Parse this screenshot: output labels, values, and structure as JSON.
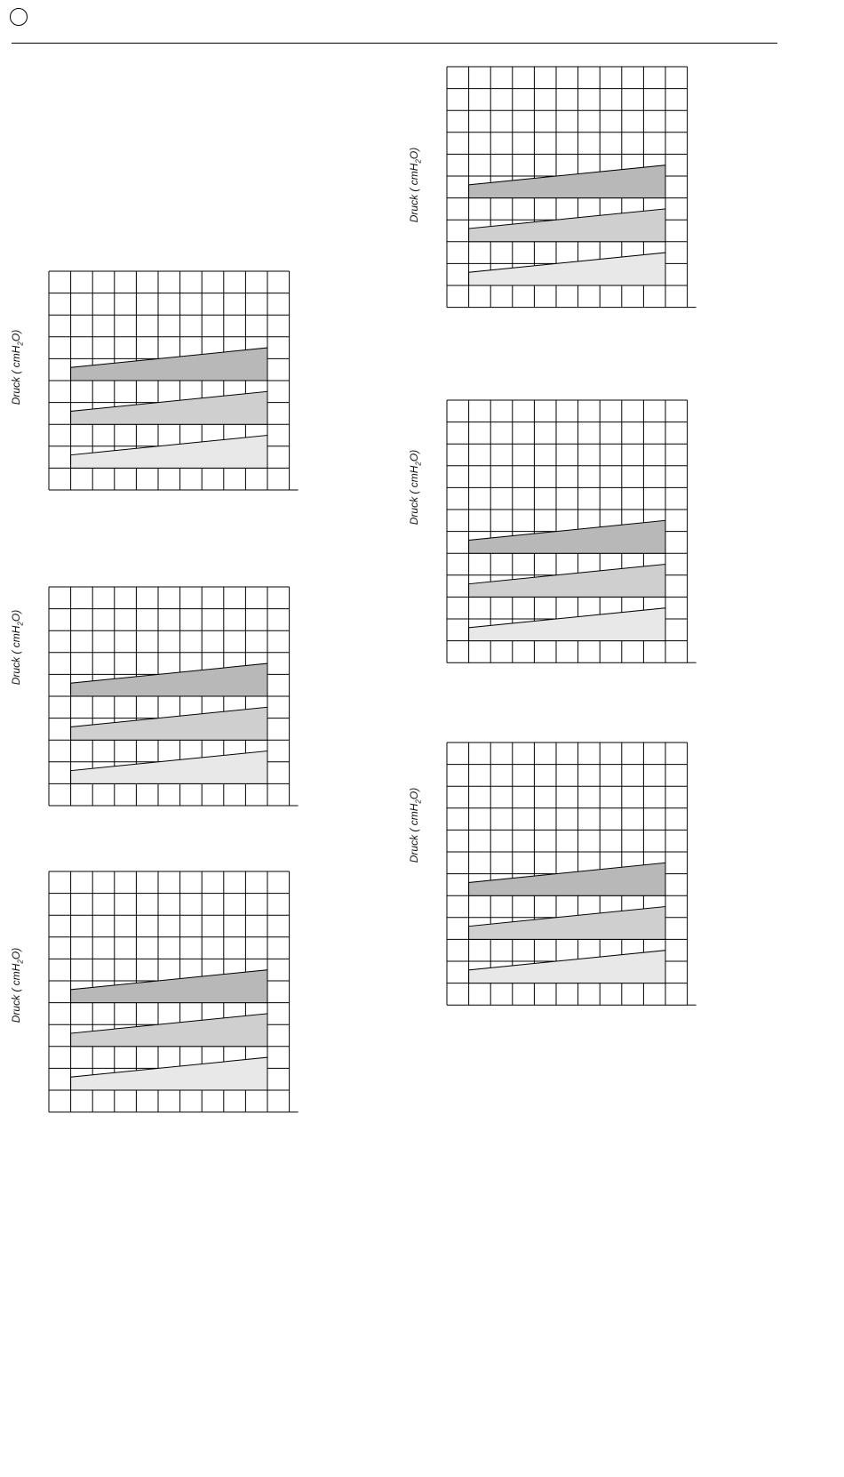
{
  "page": {
    "header_icon": "circle-icon"
  },
  "chart_data": [
    {
      "type": "area",
      "ylabel": "Druck ( cmH2O)",
      "ylabel_parts": [
        "Druck ( cmH",
        "2",
        "O)"
      ],
      "grid": true,
      "series": [
        {
          "values": [
            0.6,
            1.5
          ],
          "upper": 1.5,
          "baseline": 0,
          "color": "#e8e8e8"
        },
        {
          "values": [
            2.6,
            3.5
          ],
          "baseline": 2,
          "color": "#cfcfcf"
        },
        {
          "values": [
            4.6,
            5.5
          ],
          "baseline": 4,
          "color": "#b8b8b8"
        }
      ]
    },
    {
      "type": "area",
      "ylabel": "Druck ( cmH2O)",
      "ylabel_parts": [
        "Druck ( cmH",
        "2",
        "O)"
      ],
      "grid": true,
      "series": [
        {
          "values": [
            0.6,
            1.5
          ],
          "baseline": 0,
          "color": "#e8e8e8"
        },
        {
          "values": [
            2.6,
            3.5
          ],
          "baseline": 2,
          "color": "#cfcfcf"
        },
        {
          "values": [
            4.6,
            5.5
          ],
          "baseline": 4,
          "color": "#b8b8b8"
        }
      ]
    },
    {
      "type": "area",
      "ylabel": "Druck ( cmH2O)",
      "ylabel_parts": [
        "Druck ( cmH",
        "2",
        "O)"
      ],
      "grid": true,
      "series": [
        {
          "values": [
            0.6,
            1.5
          ],
          "baseline": 0,
          "color": "#e8e8e8"
        },
        {
          "values": [
            2.6,
            3.5
          ],
          "baseline": 2,
          "color": "#cfcfcf"
        },
        {
          "values": [
            4.6,
            5.5
          ],
          "baseline": 4,
          "color": "#b8b8b8"
        }
      ]
    },
    {
      "type": "area",
      "ylabel": "Druck ( cmH2O)",
      "ylabel_parts": [
        "Druck ( cmH",
        "2",
        "O)"
      ],
      "grid": true,
      "series": [
        {
          "values": [
            0.6,
            1.5
          ],
          "baseline": 0,
          "color": "#e8e8e8"
        },
        {
          "values": [
            2.6,
            3.5
          ],
          "baseline": 2,
          "color": "#cfcfcf"
        },
        {
          "values": [
            4.6,
            5.5
          ],
          "baseline": 4,
          "color": "#b8b8b8"
        }
      ]
    },
    {
      "type": "area",
      "ylabel": "Druck ( cmH2O)",
      "ylabel_parts": [
        "Druck ( cmH",
        "2",
        "O)"
      ],
      "grid": true,
      "series": [
        {
          "values": [
            0.6,
            1.5
          ],
          "baseline": 0,
          "color": "#e8e8e8"
        },
        {
          "values": [
            2.6,
            3.5
          ],
          "baseline": 2,
          "color": "#cfcfcf"
        },
        {
          "values": [
            4.6,
            5.5
          ],
          "baseline": 4,
          "color": "#b8b8b8"
        }
      ]
    },
    {
      "type": "area",
      "ylabel": "Druck ( cmH2O)",
      "ylabel_parts": [
        "Druck ( cmH",
        "2",
        "O)"
      ],
      "grid": true,
      "series": [
        {
          "values": [
            0.6,
            1.5
          ],
          "baseline": 0,
          "color": "#e8e8e8"
        },
        {
          "values": [
            2.6,
            3.5
          ],
          "baseline": 2,
          "color": "#cfcfcf"
        },
        {
          "values": [
            4.6,
            5.5
          ],
          "baseline": 4,
          "color": "#b8b8b8"
        }
      ]
    }
  ]
}
